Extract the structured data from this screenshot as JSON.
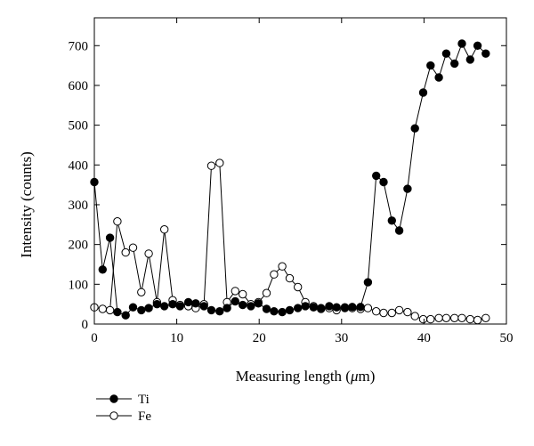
{
  "chart_data": {
    "type": "line",
    "xlabel_text": "Measuring length (",
    "xlabel_mu": "μ",
    "xlabel_unit": "m)",
    "ylabel": "Intensity (counts)",
    "xlim": [
      0,
      50
    ],
    "ylim": [
      0,
      770
    ],
    "xticks": [
      0,
      10,
      20,
      30,
      40,
      50
    ],
    "yticks": [
      0,
      100,
      200,
      300,
      400,
      500,
      600,
      700
    ],
    "grid": false,
    "legend_position": "bottom-left",
    "series": [
      {
        "name": "Ti",
        "marker": "filled-circle",
        "color": "#000000",
        "points": [
          [
            0,
            357
          ],
          [
            1,
            137
          ],
          [
            1.9,
            217
          ],
          [
            2.8,
            30
          ],
          [
            3.8,
            22
          ],
          [
            4.7,
            42
          ],
          [
            5.7,
            35
          ],
          [
            6.6,
            40
          ],
          [
            7.6,
            50
          ],
          [
            8.5,
            45
          ],
          [
            9.5,
            50
          ],
          [
            10.4,
            45
          ],
          [
            11.4,
            55
          ],
          [
            12.3,
            52
          ],
          [
            13.3,
            45
          ],
          [
            14.2,
            35
          ],
          [
            15.2,
            32
          ],
          [
            16.1,
            40
          ],
          [
            17.1,
            57
          ],
          [
            18,
            48
          ],
          [
            19,
            45
          ],
          [
            19.9,
            52
          ],
          [
            20.9,
            38
          ],
          [
            21.8,
            32
          ],
          [
            22.8,
            30
          ],
          [
            23.7,
            35
          ],
          [
            24.7,
            40
          ],
          [
            25.6,
            45
          ],
          [
            26.6,
            42
          ],
          [
            27.5,
            40
          ],
          [
            28.5,
            45
          ],
          [
            29.4,
            42
          ],
          [
            30.4,
            40
          ],
          [
            31.3,
            43
          ],
          [
            32.3,
            43
          ],
          [
            33.2,
            105
          ],
          [
            34.2,
            373
          ],
          [
            35.1,
            357
          ],
          [
            36.1,
            260
          ],
          [
            37,
            235
          ],
          [
            38,
            340
          ],
          [
            38.9,
            492
          ],
          [
            39.9,
            582
          ],
          [
            40.8,
            650
          ],
          [
            41.8,
            620
          ],
          [
            42.7,
            680
          ],
          [
            43.7,
            655
          ],
          [
            44.6,
            705
          ],
          [
            45.6,
            665
          ],
          [
            46.5,
            700
          ],
          [
            47.5,
            680
          ]
        ]
      },
      {
        "name": "Fe",
        "marker": "open-circle",
        "color": "#000000",
        "points": [
          [
            0,
            42
          ],
          [
            1,
            38
          ],
          [
            1.9,
            35
          ],
          [
            2.8,
            258
          ],
          [
            3.8,
            180
          ],
          [
            4.7,
            192
          ],
          [
            5.7,
            80
          ],
          [
            6.6,
            177
          ],
          [
            7.6,
            55
          ],
          [
            8.5,
            238
          ],
          [
            9.5,
            60
          ],
          [
            10.4,
            48
          ],
          [
            11.4,
            45
          ],
          [
            12.3,
            40
          ],
          [
            13.3,
            50
          ],
          [
            14.2,
            398
          ],
          [
            15.2,
            405
          ],
          [
            16.1,
            55
          ],
          [
            17.1,
            83
          ],
          [
            18,
            75
          ],
          [
            19,
            50
          ],
          [
            19.9,
            55
          ],
          [
            20.9,
            78
          ],
          [
            21.8,
            125
          ],
          [
            22.8,
            145
          ],
          [
            23.7,
            115
          ],
          [
            24.7,
            93
          ],
          [
            25.6,
            55
          ],
          [
            26.6,
            45
          ],
          [
            27.5,
            38
          ],
          [
            28.5,
            40
          ],
          [
            29.4,
            35
          ],
          [
            30.4,
            42
          ],
          [
            31.3,
            40
          ],
          [
            32.3,
            38
          ],
          [
            33.2,
            40
          ],
          [
            34.2,
            32
          ],
          [
            35.1,
            28
          ],
          [
            36.1,
            28
          ],
          [
            37,
            35
          ],
          [
            38,
            30
          ],
          [
            38.9,
            20
          ],
          [
            39.9,
            12
          ],
          [
            40.8,
            12
          ],
          [
            41.8,
            15
          ],
          [
            42.7,
            15
          ],
          [
            43.7,
            15
          ],
          [
            44.6,
            15
          ],
          [
            45.6,
            12
          ],
          [
            46.5,
            10
          ],
          [
            47.5,
            15
          ]
        ]
      }
    ]
  }
}
